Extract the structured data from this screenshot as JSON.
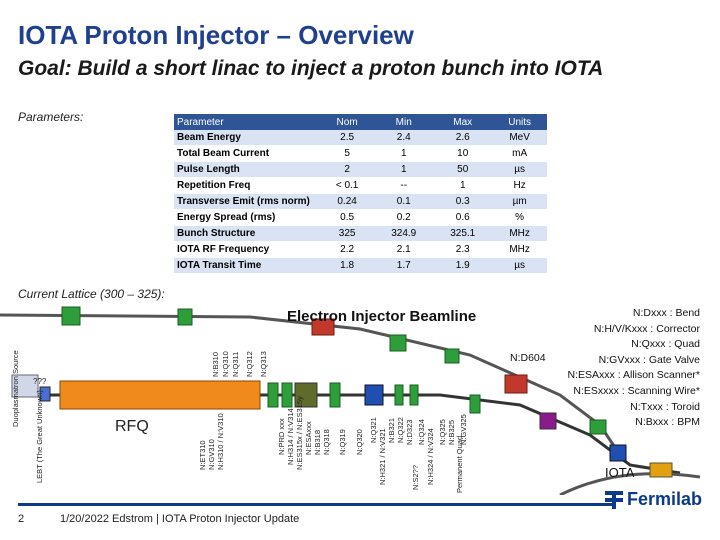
{
  "header": {
    "title": "IOTA Proton Injector – Overview",
    "subtitle": "Goal: Build a short linac to inject a proton bunch into IOTA"
  },
  "parameters": {
    "label": "Parameters:",
    "columns": [
      "Parameter",
      "Nom",
      "Min",
      "Max",
      "Units"
    ],
    "rows": [
      [
        "Beam Energy",
        "2.5",
        "2.4",
        "2.6",
        "MeV"
      ],
      [
        "Total Beam Current",
        "5",
        "1",
        "10",
        "mA"
      ],
      [
        "Pulse Length",
        "2",
        "1",
        "50",
        "µs"
      ],
      [
        "Repetition Freq",
        "< 0.1",
        "--",
        "1",
        "Hz"
      ],
      [
        "Transverse Emit (rms norm)",
        "0.24",
        "0.1",
        "0.3",
        "µm"
      ],
      [
        "Energy Spread (rms)",
        "0.5",
        "0.2",
        "0.6",
        "%"
      ],
      [
        "Bunch Structure",
        "325",
        "324.9",
        "325.1",
        "MHz"
      ],
      [
        "IOTA RF Frequency",
        "2.2",
        "2.1",
        "2.3",
        "MHz"
      ],
      [
        "IOTA Transit Time",
        "1.8",
        "1.7",
        "1.9",
        "µs"
      ]
    ]
  },
  "lattice": {
    "label": "Current Lattice (300 – 325):",
    "beamline_title": "Electron Injector Beamline",
    "rfq_label": "RFQ",
    "iota_label": "IOTA",
    "source_label": "Duoplasmatron Source",
    "lebt_label": "LEBT (The Great Unknown)",
    "question_marks": "???",
    "nd604": "N:D604",
    "device_labels": [
      "N:B310",
      "N:Q310",
      "N:Q311",
      "N:Q312",
      "N:Q313",
      "N:ET310",
      "N:GV310",
      "N:H310 / N:V310",
      "N:PRD xxx",
      "N:H314 / N:V314",
      "N:ES315x / N:ES315y",
      "N:ESAxxx",
      "N:B318",
      "N:Q318",
      "N:Q319",
      "N:Q320",
      "N:Q321",
      "N:H321 / N:V321",
      "N:B321",
      "N:Q322",
      "N:D323",
      "N:Q324",
      "N:H324 / N:V324",
      "N:Q325",
      "N:B325",
      "N:GV325",
      "N:S2??",
      "Permanent Quad"
    ],
    "legend": [
      "N:Dxxx : Bend",
      "N:H/V/Kxxx : Corrector",
      "N:Qxxx : Quad",
      "N:GVxxx : Gate Valve",
      "N:ESAxxx : Allison Scanner*",
      "N:ESxxxx : Scanning Wire*",
      "N:Txxx : Toroid",
      "N:Bxxx : BPM"
    ]
  },
  "footer": {
    "page": "2",
    "text": "1/20/2022   Edstrom | IOTA Proton Injector Update",
    "logo": "Fermilab"
  }
}
